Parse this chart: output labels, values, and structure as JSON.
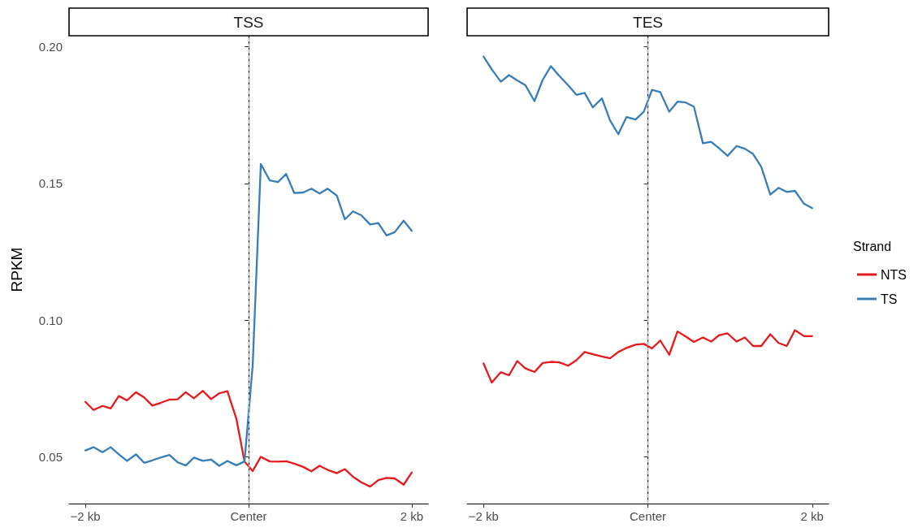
{
  "chart_data": [
    {
      "type": "line",
      "title": "TSS",
      "ylabel": "RPKM",
      "marker": "none",
      "grid": false,
      "x": [
        -2,
        -1.9,
        -1.79,
        -1.69,
        -1.59,
        -1.49,
        -1.38,
        -1.28,
        -1.18,
        -1.08,
        -0.97,
        -0.87,
        -0.77,
        -0.67,
        -0.56,
        -0.46,
        -0.36,
        -0.26,
        -0.15,
        -0.05,
        0.05,
        0.15,
        0.26,
        0.36,
        0.46,
        0.56,
        0.67,
        0.77,
        0.87,
        0.97,
        1.08,
        1.18,
        1.28,
        1.38,
        1.49,
        1.59,
        1.69,
        1.79,
        1.9,
        2
      ],
      "xlim": [
        -2.2,
        2.2
      ],
      "xticks": [
        {
          "value": -2,
          "label": "−2 kb"
        },
        {
          "value": 0,
          "label": "Center"
        },
        {
          "value": 2,
          "label": "2 kb"
        }
      ],
      "ylim": [
        0.033,
        0.204
      ],
      "yticks": [
        {
          "value": 0.05,
          "label": "0.05"
        },
        {
          "value": 0.1,
          "label": "0.10"
        },
        {
          "value": 0.15,
          "label": "0.15"
        },
        {
          "value": 0.2,
          "label": "0.20"
        }
      ],
      "ref_lines": [
        {
          "axis": "x",
          "value": 0,
          "color": "#bebebe",
          "line_style": "dashed"
        }
      ],
      "series": [
        {
          "color": "#e41a1c",
          "values": [
            0.0702,
            0.0672,
            0.0687,
            0.0678,
            0.0723,
            0.0707,
            0.0737,
            0.0718,
            0.0688,
            0.0698,
            0.071,
            0.0711,
            0.0737,
            0.0715,
            0.0742,
            0.0712,
            0.0733,
            0.0741,
            0.064,
            0.0484,
            0.0449,
            0.0501,
            0.0484,
            0.0483,
            0.0485,
            0.0476,
            0.0464,
            0.0448,
            0.0468,
            0.0453,
            0.0441,
            0.0456,
            0.0428,
            0.0408,
            0.0392,
            0.0416,
            0.0424,
            0.0422,
            0.0399,
            0.0444
          ]
        },
        {
          "color": "#377eb8",
          "values": [
            0.0524,
            0.0536,
            0.0518,
            0.0536,
            0.051,
            0.0486,
            0.051,
            0.0479,
            0.0488,
            0.0498,
            0.0508,
            0.0481,
            0.0469,
            0.0498,
            0.0486,
            0.0491,
            0.0468,
            0.0486,
            0.047,
            0.0484,
            0.0834,
            0.1571,
            0.1511,
            0.1505,
            0.1535,
            0.1465,
            0.1467,
            0.1481,
            0.1463,
            0.1481,
            0.1456,
            0.1369,
            0.1398,
            0.1384,
            0.135,
            0.1355,
            0.131,
            0.1322,
            0.1364,
            0.1327
          ]
        }
      ]
    },
    {
      "type": "line",
      "title": "TES",
      "marker": "none",
      "grid": false,
      "tick_labels": "x",
      "legend": "right",
      "legend_title": "Strand",
      "x": [
        -2,
        -1.9,
        -1.79,
        -1.69,
        -1.59,
        -1.49,
        -1.38,
        -1.28,
        -1.18,
        -1.08,
        -0.97,
        -0.87,
        -0.77,
        -0.67,
        -0.56,
        -0.46,
        -0.36,
        -0.26,
        -0.15,
        -0.05,
        0.05,
        0.15,
        0.26,
        0.36,
        0.46,
        0.56,
        0.67,
        0.77,
        0.87,
        0.97,
        1.08,
        1.18,
        1.28,
        1.38,
        1.49,
        1.59,
        1.69,
        1.79,
        1.9,
        2
      ],
      "xlim": [
        -2.2,
        2.2
      ],
      "xticks": [
        {
          "value": -2,
          "label": "−2 kb"
        },
        {
          "value": 0,
          "label": "Center"
        },
        {
          "value": 2,
          "label": "2 kb"
        }
      ],
      "ylim": [
        0.033,
        0.204
      ],
      "yticks": [
        0.05,
        0.1,
        0.15,
        0.2
      ],
      "ref_lines": [
        {
          "axis": "x",
          "value": 0,
          "color": "#bebebe",
          "line_style": "dashed"
        }
      ],
      "series": [
        {
          "name": "NTS",
          "color": "#e41a1c",
          "values": [
            0.0842,
            0.0772,
            0.081,
            0.0799,
            0.0851,
            0.0824,
            0.0811,
            0.0844,
            0.0848,
            0.0846,
            0.0834,
            0.0854,
            0.0884,
            0.0876,
            0.0868,
            0.0861,
            0.0884,
            0.0899,
            0.0911,
            0.0914,
            0.0897,
            0.0926,
            0.0874,
            0.0959,
            0.0941,
            0.0921,
            0.0937,
            0.0922,
            0.0946,
            0.0952,
            0.0922,
            0.0937,
            0.0906,
            0.0906,
            0.0949,
            0.0917,
            0.0906,
            0.0964,
            0.0942,
            0.0942
          ]
        },
        {
          "name": "TS",
          "color": "#377eb8",
          "values": [
            0.1964,
            0.1917,
            0.1872,
            0.1896,
            0.1877,
            0.1859,
            0.1801,
            0.1879,
            0.1929,
            0.1894,
            0.1859,
            0.1824,
            0.1831,
            0.1778,
            0.1811,
            0.173,
            0.168,
            0.1743,
            0.1734,
            0.1762,
            0.1842,
            0.1834,
            0.1762,
            0.1799,
            0.1796,
            0.1781,
            0.1647,
            0.1652,
            0.1628,
            0.1601,
            0.1637,
            0.1627,
            0.1608,
            0.1561,
            0.1459,
            0.1484,
            0.1469,
            0.1473,
            0.1426,
            0.141
          ]
        }
      ]
    }
  ]
}
